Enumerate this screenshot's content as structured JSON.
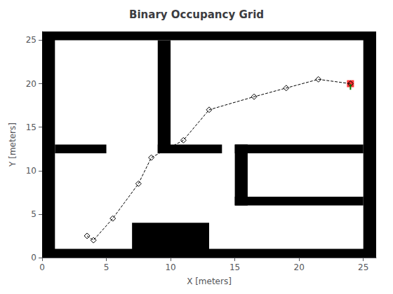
{
  "chart_data": {
    "type": "occupancy",
    "title": "Binary Occupancy Grid",
    "xlabel": "X [meters]",
    "ylabel": "Y [meters]",
    "xlim": [
      0,
      26
    ],
    "ylim": [
      0,
      26
    ],
    "xticks": [
      0,
      5,
      10,
      15,
      20,
      25
    ],
    "yticks": [
      0,
      5,
      10,
      15,
      20,
      25
    ],
    "grid": false,
    "walls": {
      "color": "#000000",
      "rects": [
        [
          0,
          0,
          26,
          1
        ],
        [
          0,
          25,
          26,
          1
        ],
        [
          0,
          0,
          1,
          26
        ],
        [
          25,
          0,
          1,
          26
        ],
        [
          1,
          12,
          4,
          1
        ],
        [
          9,
          19,
          1,
          6
        ],
        [
          9,
          12,
          1,
          7
        ],
        [
          9,
          12,
          5,
          1
        ],
        [
          7,
          0,
          6,
          4
        ],
        [
          15,
          12,
          10,
          1
        ],
        [
          15,
          6,
          10,
          1
        ],
        [
          15,
          6,
          1,
          7
        ]
      ]
    },
    "path": {
      "x": [
        3.5,
        4.0,
        5.5,
        7.5,
        8.5,
        11.0,
        13.0,
        16.5,
        19.0,
        21.5,
        24.0
      ],
      "y": [
        2.5,
        2.0,
        4.5,
        8.5,
        11.5,
        13.5,
        17.0,
        18.5,
        19.5,
        20.5,
        20.0
      ],
      "color": "#000000",
      "line_style": "dashed",
      "marker": "diamond"
    },
    "goal": {
      "x": 24.0,
      "y": 20.0,
      "color": "#ff0000",
      "marker": "square"
    },
    "heading": {
      "x": [
        24.0,
        24.0
      ],
      "y": [
        19.3,
        19.95
      ],
      "color": "#008000"
    }
  }
}
